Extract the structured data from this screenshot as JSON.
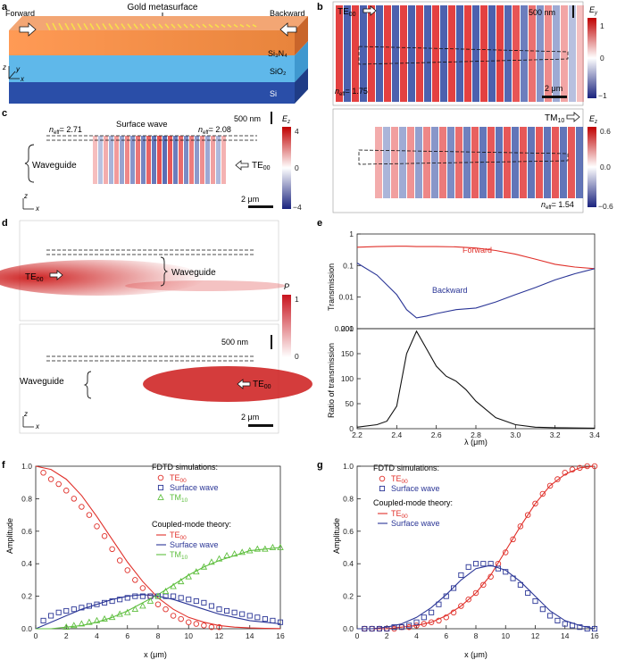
{
  "panels": {
    "a": {
      "label": "a",
      "title": "Gold metasurface",
      "forward": "Forward",
      "backward": "Backward",
      "layer_si3n4": "Si₃N₄",
      "layer_sio2": "SiO₂",
      "layer_si": "Si",
      "axes": {
        "z": "z",
        "y": "y",
        "x": "x"
      }
    },
    "b": {
      "label": "b",
      "top_mode": "TE",
      "top_mode_sub": "00",
      "scale_top": "500 nm",
      "field": "E",
      "field_sub": "y",
      "neff_top": "= 1.75",
      "scale_bottom_top": "2 μm",
      "cbar_ticks": [
        "1",
        "0",
        "−1"
      ],
      "bottom_mode": "TM",
      "bottom_mode_sub": "10",
      "field2": "E",
      "field2_sub": "z",
      "cbar2_ticks": [
        "0.6",
        "0.0",
        "−0.6"
      ],
      "neff_bottom": "= 1.54"
    },
    "c": {
      "label": "c",
      "neff_left": "= 2.71",
      "surface_wave": "Surface wave",
      "neff_right": "= 2.08",
      "scale": "500 nm",
      "field": "E",
      "field_sub": "z",
      "cbar_ticks": [
        "4",
        "0",
        "−4"
      ],
      "waveguide": "Waveguide",
      "mode": "TE",
      "mode_sub": "00",
      "scale_2um": "2 μm"
    },
    "d": {
      "label": "d",
      "mode_top": "TE",
      "mode_top_sub": "00",
      "waveguide_top": "Waveguide",
      "cbar_label": "P",
      "cbar_ticks": [
        "1",
        "0"
      ],
      "scale": "500 nm",
      "waveguide_bottom": "Waveguide",
      "mode_bottom": "TE",
      "mode_bottom_sub": "00",
      "scale_2um": "2 μm"
    },
    "e": {
      "label": "e",
      "ylabel_top": "Transmission",
      "ylabel_bottom": "Ratio of transmission",
      "xlabel": "λ (μm)",
      "forward": "Forward",
      "backward": "Backward",
      "top_yticks": [
        "1",
        "0.1",
        "0.01",
        "0.001"
      ],
      "bottom_yticks": [
        "200",
        "150",
        "100",
        "50",
        "0"
      ],
      "xticks": [
        "2.2",
        "2.4",
        "2.6",
        "2.8",
        "3.0",
        "3.2",
        "3.4"
      ]
    },
    "f": {
      "label": "f",
      "fdtd_title": "FDTD simulations:",
      "fdtd_items": [
        {
          "name": "TE",
          "sub": "00"
        },
        {
          "name": "Surface wave",
          "sub": ""
        },
        {
          "name": "TM",
          "sub": "10"
        }
      ],
      "cmt_title": "Coupled-mode theory:",
      "cmt_items": [
        {
          "name": "TE",
          "sub": "00"
        },
        {
          "name": "Surface wave",
          "sub": ""
        },
        {
          "name": "TM",
          "sub": "10"
        }
      ],
      "ylabel": "Amplitude",
      "xlabel": "x (μm)",
      "yticks": [
        "0.0",
        "0.2",
        "0.4",
        "0.6",
        "0.8",
        "1.0"
      ],
      "xticks": [
        "0",
        "2",
        "4",
        "6",
        "8",
        "10",
        "12",
        "14",
        "16"
      ]
    },
    "g": {
      "label": "g",
      "fdtd_title": "FDTD simulations:",
      "fdtd_items": [
        {
          "name": "TE",
          "sub": "00"
        },
        {
          "name": "Surface wave",
          "sub": ""
        }
      ],
      "cmt_title": "Coupled-mode theory:",
      "cmt_items": [
        {
          "name": "TE",
          "sub": "00"
        },
        {
          "name": "Surface wave",
          "sub": ""
        }
      ],
      "ylabel": "Amplitude",
      "xlabel": "x (μm)",
      "yticks": [
        "0.0",
        "0.2",
        "0.4",
        "0.6",
        "0.8",
        "1.0"
      ],
      "xticks": [
        "0",
        "2",
        "4",
        "6",
        "8",
        "10",
        "12",
        "14",
        "16"
      ]
    }
  },
  "colors": {
    "red": "#e0302a",
    "blue": "#2a3596",
    "green": "#5fbf3f",
    "black": "#111111"
  },
  "chart_data": [
    {
      "type": "line",
      "panel": "e-top",
      "xlabel": "λ (μm)",
      "ylabel": "Transmission",
      "yscale": "log",
      "xlim": [
        2.2,
        3.4
      ],
      "ylim": [
        0.001,
        1
      ],
      "x": [
        2.2,
        2.3,
        2.4,
        2.45,
        2.5,
        2.55,
        2.6,
        2.7,
        2.8,
        2.9,
        3.0,
        3.1,
        3.2,
        3.3,
        3.4
      ],
      "series": [
        {
          "name": "Forward",
          "color": "red",
          "values": [
            0.38,
            0.4,
            0.41,
            0.41,
            0.4,
            0.4,
            0.4,
            0.39,
            0.36,
            0.3,
            0.23,
            0.16,
            0.11,
            0.09,
            0.08
          ]
        },
        {
          "name": "Backward",
          "color": "blue",
          "values": [
            0.12,
            0.05,
            0.012,
            0.004,
            0.0022,
            0.0025,
            0.003,
            0.004,
            0.0045,
            0.007,
            0.012,
            0.02,
            0.035,
            0.055,
            0.08
          ]
        }
      ]
    },
    {
      "type": "line",
      "panel": "e-bottom",
      "xlabel": "λ (μm)",
      "ylabel": "Ratio of transmission",
      "xlim": [
        2.2,
        3.4
      ],
      "ylim": [
        0,
        200
      ],
      "x": [
        2.2,
        2.3,
        2.35,
        2.4,
        2.45,
        2.5,
        2.55,
        2.6,
        2.65,
        2.7,
        2.75,
        2.8,
        2.9,
        3.0,
        3.1,
        3.2,
        3.3,
        3.4
      ],
      "series": [
        {
          "name": "",
          "color": "black",
          "values": [
            3,
            8,
            15,
            45,
            150,
            195,
            160,
            125,
            105,
            95,
            78,
            55,
            22,
            8,
            3,
            2,
            1.5,
            1
          ]
        }
      ]
    },
    {
      "type": "line",
      "panel": "f",
      "xlabel": "x (μm)",
      "ylabel": "Amplitude",
      "xlim": [
        0,
        16
      ],
      "ylim": [
        0,
        1
      ],
      "x": [
        0,
        1,
        2,
        3,
        4,
        5,
        6,
        7,
        8,
        9,
        10,
        11,
        12,
        13,
        14,
        15,
        16
      ],
      "series": [
        {
          "name": "TE00 (CMT)",
          "color": "red",
          "values": [
            1.0,
            0.98,
            0.92,
            0.82,
            0.69,
            0.55,
            0.41,
            0.29,
            0.19,
            0.12,
            0.07,
            0.04,
            0.02,
            0.01,
            0.005,
            0.002,
            0.001
          ]
        },
        {
          "name": "Surface wave (CMT)",
          "color": "blue",
          "values": [
            0.0,
            0.04,
            0.08,
            0.12,
            0.15,
            0.18,
            0.2,
            0.21,
            0.2,
            0.18,
            0.15,
            0.12,
            0.09,
            0.07,
            0.05,
            0.04,
            0.03
          ]
        },
        {
          "name": "TM10 (CMT)",
          "color": "green",
          "values": [
            0.0,
            0.0,
            0.01,
            0.02,
            0.04,
            0.07,
            0.11,
            0.16,
            0.21,
            0.27,
            0.33,
            0.38,
            0.42,
            0.45,
            0.48,
            0.49,
            0.5
          ]
        }
      ],
      "scatter": [
        {
          "name": "TE00 (FDTD)",
          "color": "red",
          "marker": "circle",
          "x": [
            0.5,
            1,
            1.5,
            2,
            2.5,
            3,
            3.5,
            4,
            4.5,
            5,
            5.5,
            6,
            6.5,
            7,
            7.5,
            8,
            8.5,
            9,
            9.5,
            10,
            10.5,
            11,
            11.5,
            12
          ],
          "y": [
            0.96,
            0.92,
            0.89,
            0.85,
            0.8,
            0.75,
            0.7,
            0.63,
            0.57,
            0.49,
            0.42,
            0.36,
            0.3,
            0.25,
            0.2,
            0.15,
            0.12,
            0.08,
            0.06,
            0.04,
            0.03,
            0.02,
            0.01,
            0.01
          ]
        },
        {
          "name": "Surface wave (FDTD)",
          "color": "blue",
          "marker": "square",
          "x": [
            0.5,
            1,
            1.5,
            2,
            2.5,
            3,
            3.5,
            4,
            4.5,
            5,
            5.5,
            6,
            6.5,
            7,
            7.5,
            8,
            8.5,
            9,
            9.5,
            10,
            10.5,
            11,
            11.5,
            12,
            12.5,
            13,
            13.5,
            14,
            14.5,
            15,
            15.5,
            16
          ],
          "y": [
            0.05,
            0.08,
            0.1,
            0.11,
            0.12,
            0.13,
            0.14,
            0.15,
            0.16,
            0.17,
            0.18,
            0.19,
            0.2,
            0.2,
            0.2,
            0.2,
            0.2,
            0.2,
            0.19,
            0.18,
            0.17,
            0.16,
            0.14,
            0.12,
            0.11,
            0.1,
            0.09,
            0.08,
            0.07,
            0.06,
            0.05,
            0.04
          ]
        },
        {
          "name": "TM10 (FDTD)",
          "color": "green",
          "marker": "triangle",
          "x": [
            2,
            2.5,
            3,
            3.5,
            4,
            4.5,
            5,
            5.5,
            6,
            6.5,
            7,
            7.5,
            8,
            8.5,
            9,
            9.5,
            10,
            10.5,
            11,
            11.5,
            12,
            12.5,
            13,
            13.5,
            14,
            14.5,
            15,
            15.5,
            16
          ],
          "y": [
            0.01,
            0.02,
            0.03,
            0.04,
            0.05,
            0.06,
            0.07,
            0.09,
            0.1,
            0.12,
            0.14,
            0.17,
            0.2,
            0.23,
            0.26,
            0.29,
            0.32,
            0.35,
            0.38,
            0.41,
            0.43,
            0.45,
            0.46,
            0.47,
            0.48,
            0.49,
            0.49,
            0.5,
            0.5
          ]
        }
      ]
    },
    {
      "type": "line",
      "panel": "g",
      "xlabel": "x (μm)",
      "ylabel": "Amplitude",
      "xlim": [
        0,
        16
      ],
      "ylim": [
        0,
        1
      ],
      "x": [
        0,
        1,
        2,
        3,
        4,
        5,
        6,
        7,
        8,
        9,
        10,
        11,
        12,
        13,
        14,
        15,
        16
      ],
      "series": [
        {
          "name": "TE00 (CMT)",
          "color": "red",
          "values": [
            0.0,
            0.0,
            0.0,
            0.01,
            0.02,
            0.04,
            0.08,
            0.14,
            0.22,
            0.33,
            0.48,
            0.63,
            0.77,
            0.88,
            0.95,
            0.99,
            1.0
          ]
        },
        {
          "name": "Surface wave (CMT)",
          "color": "blue",
          "values": [
            0.0,
            0.0,
            0.01,
            0.03,
            0.07,
            0.13,
            0.21,
            0.3,
            0.37,
            0.39,
            0.36,
            0.29,
            0.2,
            0.11,
            0.05,
            0.02,
            0.0
          ]
        }
      ],
      "scatter": [
        {
          "name": "TE00 (FDTD)",
          "color": "red",
          "marker": "circle",
          "x": [
            0.5,
            1,
            1.5,
            2,
            2.5,
            3,
            3.5,
            4,
            4.5,
            5,
            5.5,
            6,
            6.5,
            7,
            7.5,
            8,
            8.5,
            9,
            9.5,
            10,
            10.5,
            11,
            11.5,
            12,
            12.5,
            13,
            13.5,
            14,
            14.5,
            15,
            15.5,
            16
          ],
          "y": [
            0.0,
            0.0,
            0.0,
            0.0,
            0.0,
            0.01,
            0.01,
            0.02,
            0.03,
            0.04,
            0.05,
            0.07,
            0.1,
            0.14,
            0.18,
            0.22,
            0.27,
            0.32,
            0.4,
            0.47,
            0.55,
            0.63,
            0.7,
            0.77,
            0.83,
            0.88,
            0.92,
            0.96,
            0.98,
            0.99,
            1.0,
            1.0
          ]
        },
        {
          "name": "Surface wave (FDTD)",
          "color": "blue",
          "marker": "square",
          "x": [
            0.5,
            1,
            1.5,
            2,
            2.5,
            3,
            3.5,
            4,
            4.5,
            5,
            5.5,
            6,
            6.5,
            7,
            7.5,
            8,
            8.5,
            9,
            9.5,
            10,
            10.5,
            11,
            11.5,
            12,
            12.5,
            13,
            13.5,
            14,
            14.5,
            15,
            15.5,
            16
          ],
          "y": [
            0.0,
            0.0,
            0.0,
            0.0,
            0.01,
            0.01,
            0.02,
            0.04,
            0.07,
            0.1,
            0.15,
            0.2,
            0.25,
            0.33,
            0.38,
            0.4,
            0.4,
            0.4,
            0.37,
            0.35,
            0.31,
            0.27,
            0.22,
            0.17,
            0.12,
            0.08,
            0.05,
            0.03,
            0.02,
            0.01,
            0.0,
            0.0
          ]
        }
      ]
    }
  ]
}
